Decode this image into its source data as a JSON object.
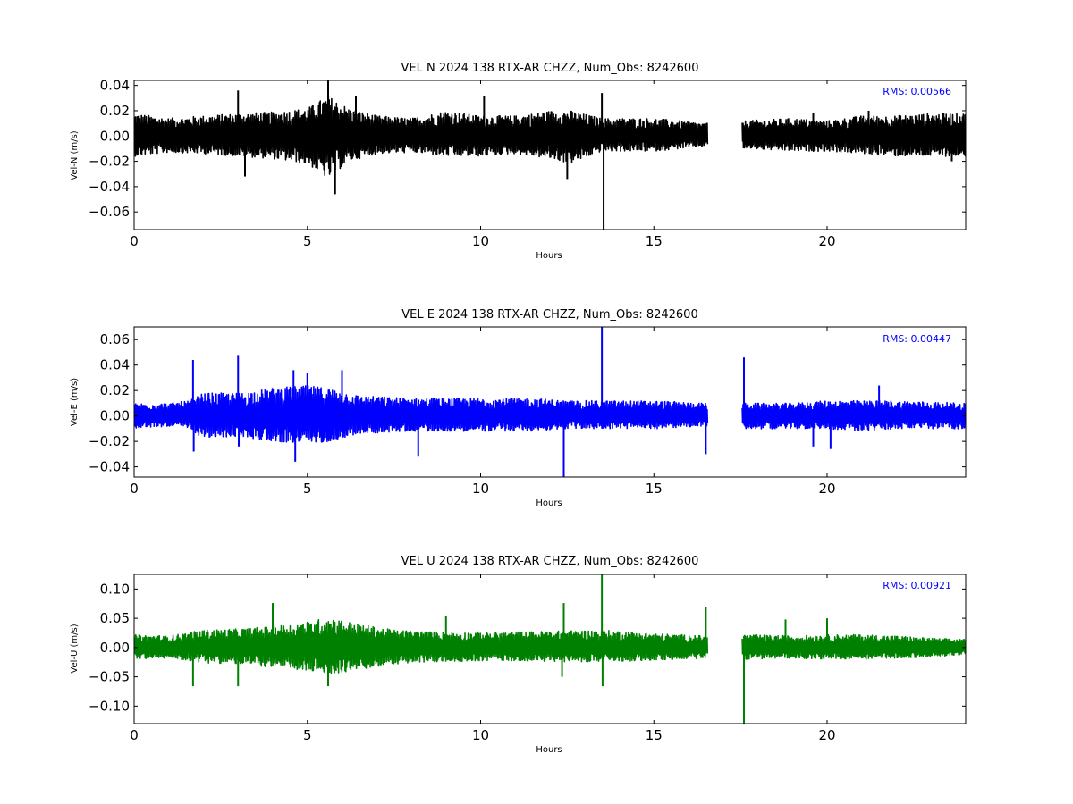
{
  "chart_data": [
    {
      "type": "line",
      "title": "VEL N 2024 138 RTX-AR  CHZZ, Num_Obs: 8242600",
      "xlabel": "Hours",
      "ylabel": "Vel-N (m/s)",
      "xlim": [
        0,
        24
      ],
      "ylim": [
        -0.074,
        0.044
      ],
      "x_ticks": [
        0,
        5,
        10,
        15,
        20
      ],
      "x_tick_labels": [
        "0",
        "5",
        "10",
        "15",
        "20"
      ],
      "y_ticks": [
        -0.06,
        -0.04,
        -0.02,
        0.0,
        0.02,
        0.04
      ],
      "y_tick_labels": [
        "−0.06",
        "−0.04",
        "−0.02",
        "0.00",
        "0.02",
        "0.04"
      ],
      "annotation": "RMS:  0.00566",
      "color": "#000000",
      "annotation_color": "#0000ff",
      "grid": false,
      "data_gap_hours": [
        16.55,
        17.55
      ],
      "noise_envelope": [
        [
          0.0,
          -0.016,
          0.018
        ],
        [
          1.0,
          -0.013,
          0.014
        ],
        [
          2.0,
          -0.014,
          0.016
        ],
        [
          3.0,
          -0.016,
          0.018
        ],
        [
          4.0,
          -0.018,
          0.019
        ],
        [
          5.0,
          -0.022,
          0.022
        ],
        [
          5.6,
          -0.034,
          0.032
        ],
        [
          6.2,
          -0.02,
          0.022
        ],
        [
          7.0,
          -0.014,
          0.016
        ],
        [
          8.0,
          -0.013,
          0.014
        ],
        [
          9.0,
          -0.016,
          0.02
        ],
        [
          10.0,
          -0.016,
          0.016
        ],
        [
          11.0,
          -0.014,
          0.016
        ],
        [
          12.0,
          -0.018,
          0.02
        ],
        [
          12.6,
          -0.022,
          0.02
        ],
        [
          13.5,
          -0.012,
          0.014
        ],
        [
          15.0,
          -0.012,
          0.014
        ],
        [
          16.5,
          -0.008,
          0.01
        ],
        [
          17.6,
          -0.01,
          0.012
        ],
        [
          19.0,
          -0.012,
          0.014
        ],
        [
          20.0,
          -0.012,
          0.012
        ],
        [
          21.0,
          -0.014,
          0.016
        ],
        [
          22.0,
          -0.016,
          0.016
        ],
        [
          23.0,
          -0.016,
          0.018
        ],
        [
          24.0,
          -0.016,
          0.018
        ]
      ],
      "spikes": [
        {
          "x": 3.0,
          "y": 0.036
        },
        {
          "x": 3.2,
          "y": -0.032
        },
        {
          "x": 5.6,
          "y": 0.044
        },
        {
          "x": 5.8,
          "y": -0.046
        },
        {
          "x": 6.4,
          "y": 0.032
        },
        {
          "x": 10.1,
          "y": 0.032
        },
        {
          "x": 12.5,
          "y": -0.034
        },
        {
          "x": 13.5,
          "y": 0.034
        },
        {
          "x": 13.55,
          "y": -0.074
        },
        {
          "x": 19.6,
          "y": 0.018
        },
        {
          "x": 21.2,
          "y": 0.02
        },
        {
          "x": 23.6,
          "y": -0.02
        }
      ]
    },
    {
      "type": "line",
      "title": "VEL E 2024 138 RTX-AR  CHZZ, Num_Obs: 8242600",
      "xlabel": "Hours",
      "ylabel": "Vel-E (m/s)",
      "xlim": [
        0,
        24
      ],
      "ylim": [
        -0.048,
        0.07
      ],
      "x_ticks": [
        0,
        5,
        10,
        15,
        20
      ],
      "x_tick_labels": [
        "0",
        "5",
        "10",
        "15",
        "20"
      ],
      "y_ticks": [
        -0.04,
        -0.02,
        0.0,
        0.02,
        0.04,
        0.06
      ],
      "y_tick_labels": [
        "−0.04",
        "−0.02",
        "0.00",
        "0.02",
        "0.04",
        "0.06"
      ],
      "annotation": "RMS:  0.00447",
      "color": "#0000ff",
      "annotation_color": "#0000ff",
      "grid": false,
      "data_gap_hours": [
        16.55,
        17.55
      ],
      "noise_envelope": [
        [
          0.0,
          -0.01,
          0.01
        ],
        [
          1.0,
          -0.008,
          0.01
        ],
        [
          1.6,
          -0.01,
          0.012
        ],
        [
          2.0,
          -0.018,
          0.018
        ],
        [
          3.0,
          -0.016,
          0.018
        ],
        [
          4.0,
          -0.02,
          0.022
        ],
        [
          5.0,
          -0.022,
          0.024
        ],
        [
          5.6,
          -0.02,
          0.022
        ],
        [
          6.5,
          -0.014,
          0.016
        ],
        [
          8.0,
          -0.012,
          0.014
        ],
        [
          10.0,
          -0.012,
          0.014
        ],
        [
          11.5,
          -0.012,
          0.014
        ],
        [
          12.5,
          -0.01,
          0.012
        ],
        [
          13.5,
          -0.01,
          0.012
        ],
        [
          15.0,
          -0.01,
          0.012
        ],
        [
          16.5,
          -0.008,
          0.01
        ],
        [
          17.6,
          -0.01,
          0.01
        ],
        [
          19.0,
          -0.01,
          0.01
        ],
        [
          20.0,
          -0.01,
          0.012
        ],
        [
          21.0,
          -0.012,
          0.012
        ],
        [
          22.0,
          -0.01,
          0.012
        ],
        [
          24.0,
          -0.01,
          0.01
        ]
      ],
      "spikes": [
        {
          "x": 1.7,
          "y": 0.044
        },
        {
          "x": 1.72,
          "y": -0.028
        },
        {
          "x": 3.0,
          "y": 0.048
        },
        {
          "x": 3.02,
          "y": -0.024
        },
        {
          "x": 4.6,
          "y": 0.036
        },
        {
          "x": 4.65,
          "y": -0.036
        },
        {
          "x": 5.0,
          "y": 0.034
        },
        {
          "x": 6.0,
          "y": 0.036
        },
        {
          "x": 8.2,
          "y": -0.032
        },
        {
          "x": 12.4,
          "y": -0.048
        },
        {
          "x": 13.5,
          "y": 0.07
        },
        {
          "x": 16.5,
          "y": -0.03
        },
        {
          "x": 17.6,
          "y": 0.046
        },
        {
          "x": 19.6,
          "y": -0.024
        },
        {
          "x": 20.1,
          "y": -0.026
        },
        {
          "x": 21.5,
          "y": 0.024
        }
      ]
    },
    {
      "type": "line",
      "title": "VEL U 2024 138 RTX-AR  CHZZ, Num_Obs: 8242600",
      "xlabel": "Hours",
      "ylabel": "Vel-U (m/s)",
      "xlim": [
        0,
        24
      ],
      "ylim": [
        -0.13,
        0.125
      ],
      "x_ticks": [
        0,
        5,
        10,
        15,
        20
      ],
      "x_tick_labels": [
        "0",
        "5",
        "10",
        "15",
        "20"
      ],
      "y_ticks": [
        -0.1,
        -0.05,
        0.0,
        0.05,
        0.1
      ],
      "y_tick_labels": [
        "−0.10",
        "−0.05",
        "0.00",
        "0.05",
        "0.10"
      ],
      "annotation": "RMS:  0.00921",
      "color": "#008000",
      "annotation_color": "#0000ff",
      "grid": false,
      "data_gap_hours": [
        16.55,
        17.55
      ],
      "noise_envelope": [
        [
          0.0,
          -0.02,
          0.022
        ],
        [
          1.0,
          -0.018,
          0.02
        ],
        [
          2.0,
          -0.026,
          0.03
        ],
        [
          3.0,
          -0.028,
          0.032
        ],
        [
          4.0,
          -0.034,
          0.036
        ],
        [
          5.0,
          -0.04,
          0.044
        ],
        [
          5.6,
          -0.046,
          0.052
        ],
        [
          6.5,
          -0.038,
          0.04
        ],
        [
          7.5,
          -0.028,
          0.03
        ],
        [
          9.0,
          -0.024,
          0.026
        ],
        [
          10.5,
          -0.022,
          0.026
        ],
        [
          12.0,
          -0.024,
          0.028
        ],
        [
          13.5,
          -0.024,
          0.03
        ],
        [
          15.0,
          -0.022,
          0.024
        ],
        [
          16.5,
          -0.018,
          0.02
        ],
        [
          17.6,
          -0.02,
          0.022
        ],
        [
          19.0,
          -0.018,
          0.02
        ],
        [
          20.0,
          -0.02,
          0.022
        ],
        [
          21.0,
          -0.02,
          0.022
        ],
        [
          22.0,
          -0.018,
          0.02
        ],
        [
          23.0,
          -0.016,
          0.016
        ],
        [
          24.0,
          -0.012,
          0.014
        ]
      ],
      "spikes": [
        {
          "x": 1.7,
          "y": -0.066
        },
        {
          "x": 3.0,
          "y": -0.066
        },
        {
          "x": 4.0,
          "y": 0.076
        },
        {
          "x": 5.6,
          "y": -0.066
        },
        {
          "x": 9.0,
          "y": 0.054
        },
        {
          "x": 12.4,
          "y": 0.076
        },
        {
          "x": 12.35,
          "y": -0.05
        },
        {
          "x": 13.5,
          "y": 0.125
        },
        {
          "x": 13.52,
          "y": -0.066
        },
        {
          "x": 16.5,
          "y": 0.07
        },
        {
          "x": 17.6,
          "y": -0.13
        },
        {
          "x": 18.8,
          "y": 0.048
        },
        {
          "x": 20.0,
          "y": 0.05
        }
      ]
    }
  ]
}
